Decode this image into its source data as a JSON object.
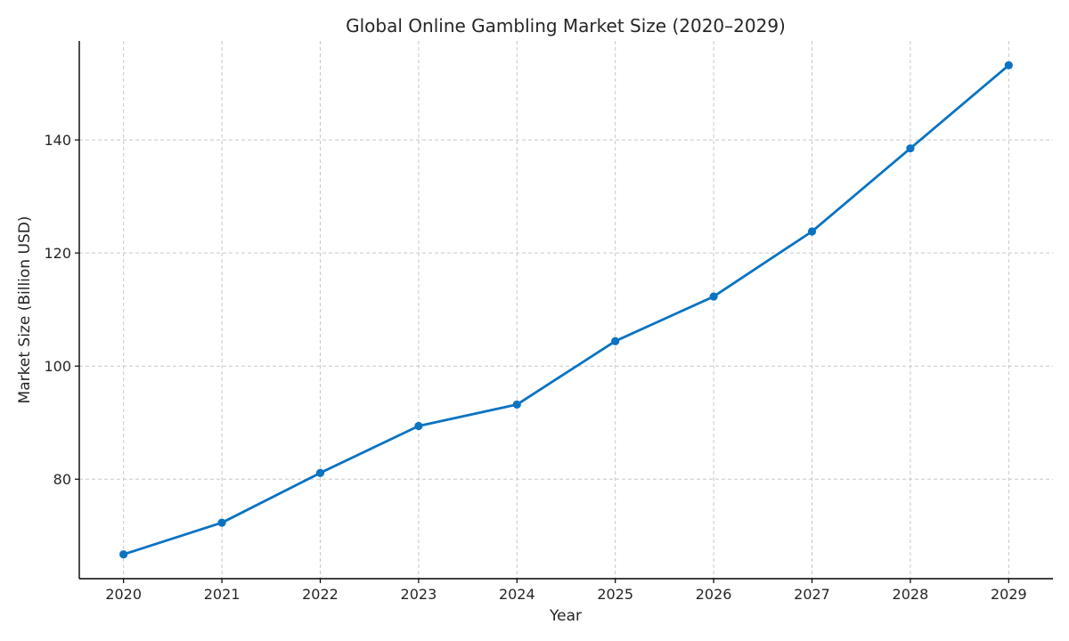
{
  "chart_data": {
    "type": "line",
    "title": "Global Online Gambling Market Size (2020–2029)",
    "xlabel": "Year",
    "ylabel": "Market Size (Billion USD)",
    "x": [
      2020,
      2021,
      2022,
      2023,
      2024,
      2025,
      2026,
      2027,
      2028,
      2029
    ],
    "series": [
      {
        "values": [
          66.7,
          72.3,
          81.1,
          89.4,
          93.2,
          104.4,
          112.3,
          123.8,
          138.5,
          153.2
        ],
        "color": "#0a73c2"
      }
    ],
    "x_ticks": [
      2020,
      2021,
      2022,
      2023,
      2024,
      2025,
      2026,
      2027,
      2028,
      2029
    ],
    "y_ticks": [
      80,
      100,
      120,
      140
    ],
    "xlim": [
      2019.55,
      2029.45
    ],
    "ylim": [
      62.4,
      157.5
    ],
    "grid": true,
    "legend": "none"
  }
}
